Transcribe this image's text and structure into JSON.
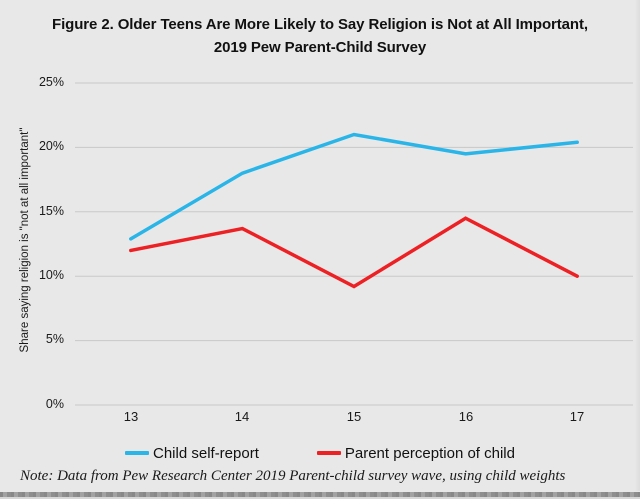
{
  "title": "Figure 2. Older Teens Are More Likely to Say Religion is Not at All Important, 2019 Pew Parent-Child Survey",
  "y_axis_label": "Share saying religion is \"not at all important\"",
  "note": "Note: Data from Pew Research Center 2019 Parent-child survey wave, using child weights",
  "colors": {
    "background": "#e8e8e8",
    "gridline": "#c9c9c9",
    "child_line": "#29b5e8",
    "parent_line": "#ed2024",
    "text": "#1a1a1a"
  },
  "chart_data": {
    "type": "line",
    "x": [
      13,
      14,
      15,
      16,
      17
    ],
    "xlabel": "",
    "ylabel": "Share saying religion is \"not at all important\"",
    "ylim": [
      0,
      25
    ],
    "y_ticks": [
      "0%",
      "5%",
      "10%",
      "15%",
      "20%",
      "25%"
    ],
    "grid": "horizontal",
    "legend_position": "bottom",
    "series": [
      {
        "name": "Child self-report",
        "color": "#29b5e8",
        "values": [
          12.9,
          18.0,
          21.0,
          19.5,
          20.4
        ]
      },
      {
        "name": "Parent perception of child",
        "color": "#ed2024",
        "values": [
          12.0,
          13.7,
          9.2,
          14.5,
          10.0
        ]
      }
    ]
  }
}
